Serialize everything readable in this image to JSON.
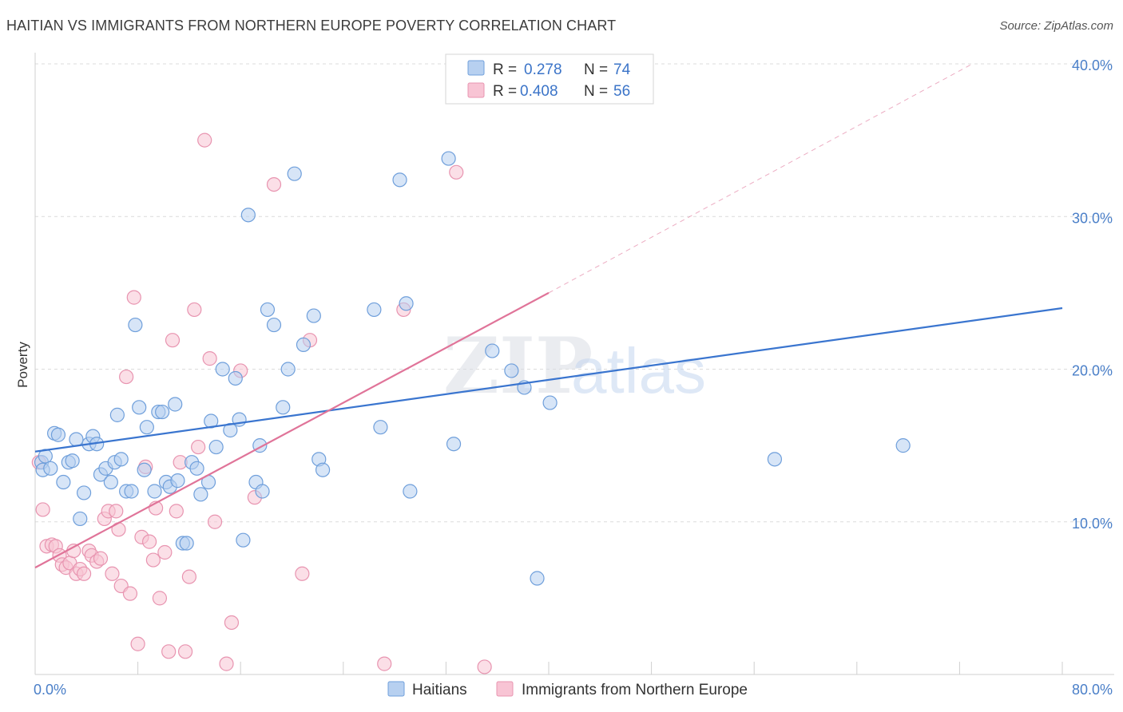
{
  "header": {
    "title": "HAITIAN VS IMMIGRANTS FROM NORTHERN EUROPE POVERTY CORRELATION CHART",
    "source": "Source: ZipAtlas.com"
  },
  "legend_top": {
    "rows": [
      {
        "r_label": "R =",
        "r_value": "0.278",
        "n_label": "N =",
        "n_value": "74"
      },
      {
        "r_label": "R =",
        "r_value": "0.408",
        "n_label": "N =",
        "n_value": "56"
      }
    ]
  },
  "legend_bottom": {
    "items": [
      {
        "label": "Haitians"
      },
      {
        "label": "Immigrants from Northern Europe"
      }
    ]
  },
  "watermark": {
    "zip": "ZIP",
    "atlas": "atlas"
  },
  "colors": {
    "blue_fill": "#b7d0f0",
    "blue_stroke": "#6f9fdb",
    "blue_line": "#3a75cf",
    "pink_fill": "#f8c4d4",
    "pink_stroke": "#e894b0",
    "pink_line": "#e07499"
  },
  "chart_data": {
    "type": "scatter",
    "title": "HAITIAN VS IMMIGRANTS FROM NORTHERN EUROPE POVERTY CORRELATION CHART",
    "xlabel": "",
    "ylabel": "Poverty",
    "xlim": [
      0,
      80
    ],
    "ylim": [
      0,
      40
    ],
    "x_tick_labels": [
      "0.0%",
      "80.0%"
    ],
    "y_ticks": [
      10,
      20,
      30,
      40
    ],
    "y_tick_labels": [
      "10.0%",
      "20.0%",
      "30.0%",
      "40.0%"
    ],
    "grid": true,
    "legend": "top-center",
    "series": [
      {
        "name": "Haitians",
        "r": 0.278,
        "n": 74,
        "trend": {
          "x": [
            0,
            80
          ],
          "y": [
            14.6,
            24.0
          ]
        },
        "points": [
          [
            0.5,
            13.9
          ],
          [
            0.6,
            13.4
          ],
          [
            0.8,
            14.3
          ],
          [
            1.2,
            13.5
          ],
          [
            1.5,
            15.8
          ],
          [
            1.8,
            15.7
          ],
          [
            2.2,
            12.6
          ],
          [
            2.6,
            13.9
          ],
          [
            2.9,
            14.0
          ],
          [
            3.2,
            15.4
          ],
          [
            3.5,
            10.2
          ],
          [
            3.8,
            11.9
          ],
          [
            4.2,
            15.1
          ],
          [
            4.5,
            15.6
          ],
          [
            4.8,
            15.1
          ],
          [
            5.1,
            13.1
          ],
          [
            5.5,
            13.5
          ],
          [
            5.9,
            12.6
          ],
          [
            6.2,
            13.9
          ],
          [
            6.4,
            17.0
          ],
          [
            6.7,
            14.1
          ],
          [
            7.1,
            12.0
          ],
          [
            7.5,
            12.0
          ],
          [
            7.8,
            22.9
          ],
          [
            8.1,
            17.5
          ],
          [
            8.5,
            13.4
          ],
          [
            8.7,
            16.2
          ],
          [
            9.3,
            12.0
          ],
          [
            9.6,
            17.2
          ],
          [
            9.9,
            17.2
          ],
          [
            10.2,
            12.6
          ],
          [
            10.5,
            12.3
          ],
          [
            10.9,
            17.7
          ],
          [
            11.1,
            12.7
          ],
          [
            11.5,
            8.6
          ],
          [
            11.8,
            8.6
          ],
          [
            12.2,
            13.9
          ],
          [
            12.6,
            13.5
          ],
          [
            12.9,
            11.8
          ],
          [
            13.5,
            12.6
          ],
          [
            13.7,
            16.6
          ],
          [
            14.1,
            14.9
          ],
          [
            14.6,
            20.0
          ],
          [
            15.2,
            16.0
          ],
          [
            15.6,
            19.4
          ],
          [
            15.9,
            16.7
          ],
          [
            16.2,
            8.8
          ],
          [
            16.6,
            30.1
          ],
          [
            17.2,
            12.6
          ],
          [
            17.5,
            15.0
          ],
          [
            17.7,
            12.0
          ],
          [
            18.1,
            23.9
          ],
          [
            18.6,
            22.9
          ],
          [
            19.3,
            17.5
          ],
          [
            19.7,
            20.0
          ],
          [
            20.2,
            32.8
          ],
          [
            20.9,
            21.6
          ],
          [
            21.7,
            23.5
          ],
          [
            22.1,
            14.1
          ],
          [
            22.4,
            13.4
          ],
          [
            26.4,
            23.9
          ],
          [
            26.9,
            16.2
          ],
          [
            28.4,
            32.4
          ],
          [
            28.9,
            24.3
          ],
          [
            29.2,
            12.0
          ],
          [
            32.2,
            33.8
          ],
          [
            32.6,
            15.1
          ],
          [
            35.6,
            21.2
          ],
          [
            37.1,
            19.9
          ],
          [
            38.1,
            18.8
          ],
          [
            39.1,
            6.3
          ],
          [
            40.1,
            17.8
          ],
          [
            57.6,
            14.1
          ],
          [
            67.6,
            15.0
          ]
        ]
      },
      {
        "name": "Immigrants from Northern Europe",
        "r": 0.408,
        "n": 56,
        "trend": {
          "x": [
            0,
            40
          ],
          "y": [
            7.0,
            25.0
          ]
        },
        "trend_dashed": {
          "x": [
            40,
            73
          ],
          "y": [
            25.0,
            40.0
          ]
        },
        "points": [
          [
            0.3,
            13.9
          ],
          [
            0.6,
            10.8
          ],
          [
            0.9,
            8.4
          ],
          [
            1.3,
            8.5
          ],
          [
            1.6,
            8.4
          ],
          [
            1.9,
            7.8
          ],
          [
            2.1,
            7.2
          ],
          [
            2.4,
            7.0
          ],
          [
            2.7,
            7.3
          ],
          [
            3.0,
            8.1
          ],
          [
            3.2,
            6.6
          ],
          [
            3.5,
            6.9
          ],
          [
            3.8,
            6.6
          ],
          [
            4.2,
            8.1
          ],
          [
            4.4,
            7.8
          ],
          [
            4.8,
            7.4
          ],
          [
            5.1,
            7.6
          ],
          [
            5.4,
            10.2
          ],
          [
            5.7,
            10.7
          ],
          [
            6.0,
            6.6
          ],
          [
            6.3,
            10.7
          ],
          [
            6.5,
            9.5
          ],
          [
            6.7,
            5.8
          ],
          [
            7.1,
            19.5
          ],
          [
            7.4,
            5.3
          ],
          [
            7.7,
            24.7
          ],
          [
            8.0,
            2.0
          ],
          [
            8.3,
            9.0
          ],
          [
            8.6,
            13.6
          ],
          [
            8.9,
            8.7
          ],
          [
            9.2,
            7.5
          ],
          [
            9.4,
            10.9
          ],
          [
            9.7,
            5.0
          ],
          [
            10.1,
            8.0
          ],
          [
            10.4,
            1.5
          ],
          [
            10.7,
            21.9
          ],
          [
            11.0,
            10.7
          ],
          [
            11.3,
            13.9
          ],
          [
            11.7,
            1.5
          ],
          [
            12.0,
            6.4
          ],
          [
            12.4,
            23.9
          ],
          [
            12.7,
            14.9
          ],
          [
            13.2,
            35.0
          ],
          [
            13.6,
            20.7
          ],
          [
            14.0,
            10.0
          ],
          [
            14.9,
            0.7
          ],
          [
            15.3,
            3.4
          ],
          [
            16.0,
            19.9
          ],
          [
            17.1,
            11.6
          ],
          [
            18.6,
            32.1
          ],
          [
            20.8,
            6.6
          ],
          [
            21.4,
            21.9
          ],
          [
            27.2,
            0.7
          ],
          [
            28.7,
            23.9
          ],
          [
            32.8,
            32.9
          ],
          [
            35.0,
            0.5
          ]
        ]
      }
    ]
  }
}
